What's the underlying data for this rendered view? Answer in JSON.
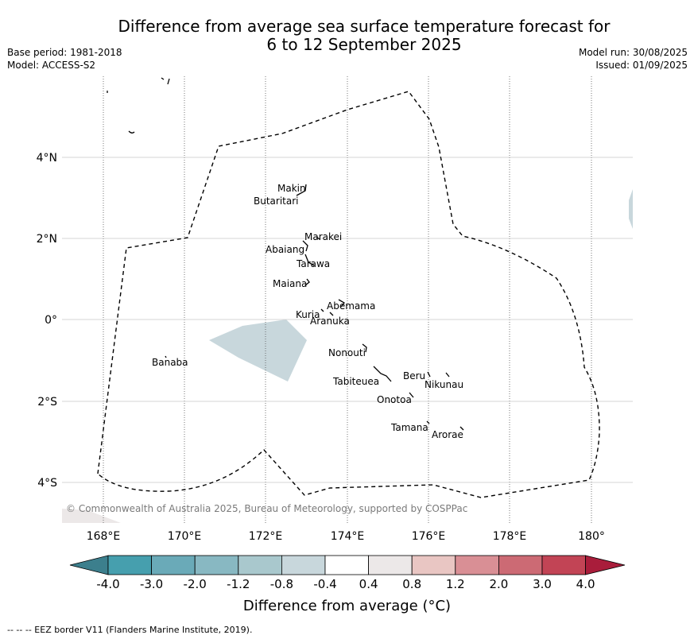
{
  "title_line1": "Difference from average sea surface temperature forecast for",
  "title_line2": "6 to 12 September 2025",
  "meta": {
    "base_period": "Base period: 1981-2018",
    "model": "Model: ACCESS-S2",
    "model_run": "Model run: 30/08/2025",
    "issued": "Issued: 01/09/2025"
  },
  "map": {
    "lon_ticks": [
      "168°E",
      "170°E",
      "172°E",
      "174°E",
      "176°E",
      "178°E",
      "180°"
    ],
    "lat_ticks": [
      "4°N",
      "2°N",
      "0°",
      "2°S",
      "4°S"
    ],
    "copyright": "© Commonwealth of Australia 2025, Bureau of Meteorology, supported by COSPPac",
    "islands": [
      "Makin",
      "Butaritari",
      "Marakei",
      "Abaiang",
      "Tarawa",
      "Maiana",
      "Abemama",
      "Kuria",
      "Aranuka",
      "Banaba",
      "Nonouti",
      "Beru",
      "Nikunau",
      "Tabiteuea",
      "Onotoa",
      "Tamana",
      "Arorae"
    ]
  },
  "colorbar": {
    "ticks": [
      "-4.0",
      "-3.0",
      "-2.0",
      "-1.2",
      "-0.8",
      "-0.4",
      "0.4",
      "0.8",
      "1.2",
      "2.0",
      "3.0",
      "4.0"
    ],
    "colors": [
      "#469fae",
      "#6aaab8",
      "#88b8c2",
      "#a9c8cd",
      "#c8d7dc",
      "#ffffff",
      "#ece8e8",
      "#e9c6c3",
      "#d98f95",
      "#cc6a74",
      "#c24455"
    ],
    "under_color": "#3c7f8d",
    "over_color": "#a91d3b",
    "label": "Difference from average (°C)"
  },
  "footer": "--  --  -- EEZ border V11 (Flanders Marine Institute, 2019)."
}
